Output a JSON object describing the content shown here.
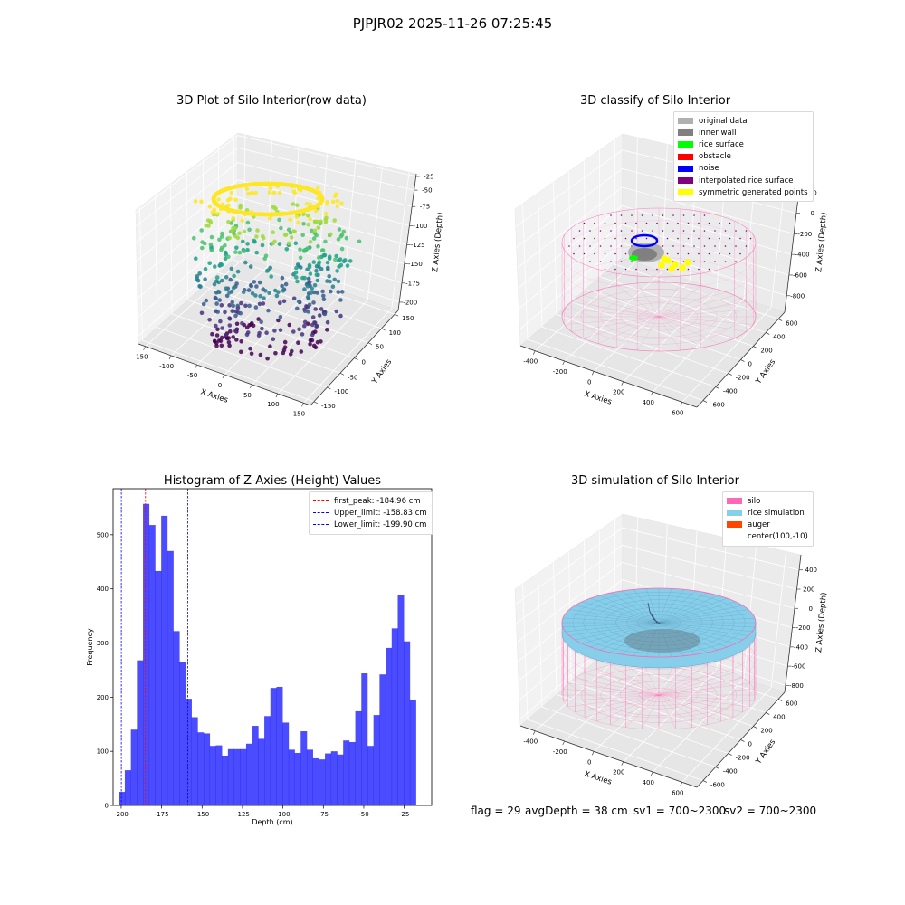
{
  "suptitle": "PJPJR02 2025-11-26 07:25:45",
  "panels": {
    "raw": {
      "title": "3D Plot of Silo Interior(row data)",
      "xlabel": "X Axies",
      "ylabel": "Y Axies",
      "zlabel": "Z Axies (Depth)",
      "xticks": [
        "-150",
        "-100",
        "-50",
        "0",
        "50",
        "100",
        "150"
      ],
      "yticks": [
        "-150",
        "-100",
        "-50",
        "0",
        "50",
        "100",
        "150"
      ],
      "zticks": [
        "-200",
        "-175",
        "-150",
        "-125",
        "-100",
        "-75",
        "-50",
        "-25"
      ]
    },
    "classify": {
      "title": "3D classify of Silo Interior",
      "xlabel": "X Axies",
      "ylabel": "Y Axies",
      "zlabel": "Z Axies (Depth)",
      "xticks": [
        "-400",
        "-200",
        "0",
        "200",
        "400",
        "600"
      ],
      "yticks": [
        "-600",
        "-400",
        "-200",
        "0",
        "200",
        "400",
        "600"
      ],
      "zticks": [
        "-800",
        "-600",
        "-400",
        "-200",
        "0",
        "200"
      ],
      "legend": [
        {
          "label": "original data",
          "color": "#b0b0b0"
        },
        {
          "label": "inner wall",
          "color": "#808080"
        },
        {
          "label": "rice surface",
          "color": "#00ff00"
        },
        {
          "label": "obstacle",
          "color": "#ff0000"
        },
        {
          "label": "noise",
          "color": "#0000ff"
        },
        {
          "label": "interpolated rice surface",
          "color": "#800080"
        },
        {
          "label": "symmetric generated points",
          "color": "#ffff00"
        }
      ]
    },
    "simulation": {
      "title": "3D simulation of Silo Interior",
      "xlabel": "X Axies",
      "ylabel": "Y Axies",
      "zlabel": "Z Axies (Depth)",
      "xticks": [
        "-400",
        "-200",
        "0",
        "200",
        "400",
        "600"
      ],
      "yticks": [
        "-600",
        "-400",
        "-200",
        "0",
        "200",
        "400",
        "600"
      ],
      "zticks": [
        "-800",
        "-600",
        "-400",
        "-200",
        "0",
        "200",
        "400"
      ],
      "legend": [
        {
          "label": "silo",
          "color": "#ff69b4"
        },
        {
          "label": "rice simulation",
          "color": "#87ceeb"
        },
        {
          "label": "auger",
          "color": "#ff4500"
        },
        {
          "label": "center(100,-10)",
          "color": ""
        }
      ]
    }
  },
  "status": {
    "flag": "flag = 29",
    "avg_depth": "avgDepth = 38 cm",
    "sv1": "sv1 = 700~2300",
    "sv2": "sv2 = 700~2300"
  },
  "chart_data": {
    "type": "bar",
    "title": "Histogram of Z-Axies (Height) Values",
    "xlabel": "Depth (cm)",
    "ylabel": "Frequency",
    "bins": {
      "start": -201.5,
      "width": 3.75
    },
    "values": [
      25,
      65,
      140,
      268,
      557,
      518,
      433,
      535,
      470,
      322,
      265,
      197,
      163,
      135,
      133,
      110,
      111,
      92,
      104,
      104,
      104,
      114,
      147,
      123,
      165,
      217,
      219,
      153,
      103,
      97,
      137,
      103,
      87,
      85,
      96,
      100,
      94,
      120,
      117,
      174,
      244,
      110,
      167,
      242,
      291,
      327,
      388,
      303,
      195
    ],
    "bar_color": "#0000ff",
    "bar_alpha": 0.7,
    "xlim": [
      -205,
      -8
    ],
    "ylim": [
      0,
      585
    ],
    "xticks": [
      -200,
      -175,
      -150,
      -125,
      -100,
      -75,
      -50,
      -25
    ],
    "yticks": [
      0,
      100,
      200,
      300,
      400,
      500
    ],
    "vlines": [
      {
        "label": "first_peak: -184.96 cm",
        "value": -184.96,
        "color": "#ff0000"
      },
      {
        "label": "Upper_limit: -158.83 cm",
        "value": -158.83,
        "color": "#0000ff"
      },
      {
        "label": "Lower_limit: -199.90 cm",
        "value": -199.9,
        "color": "#0000ff"
      }
    ],
    "legend_position": "top-right"
  }
}
